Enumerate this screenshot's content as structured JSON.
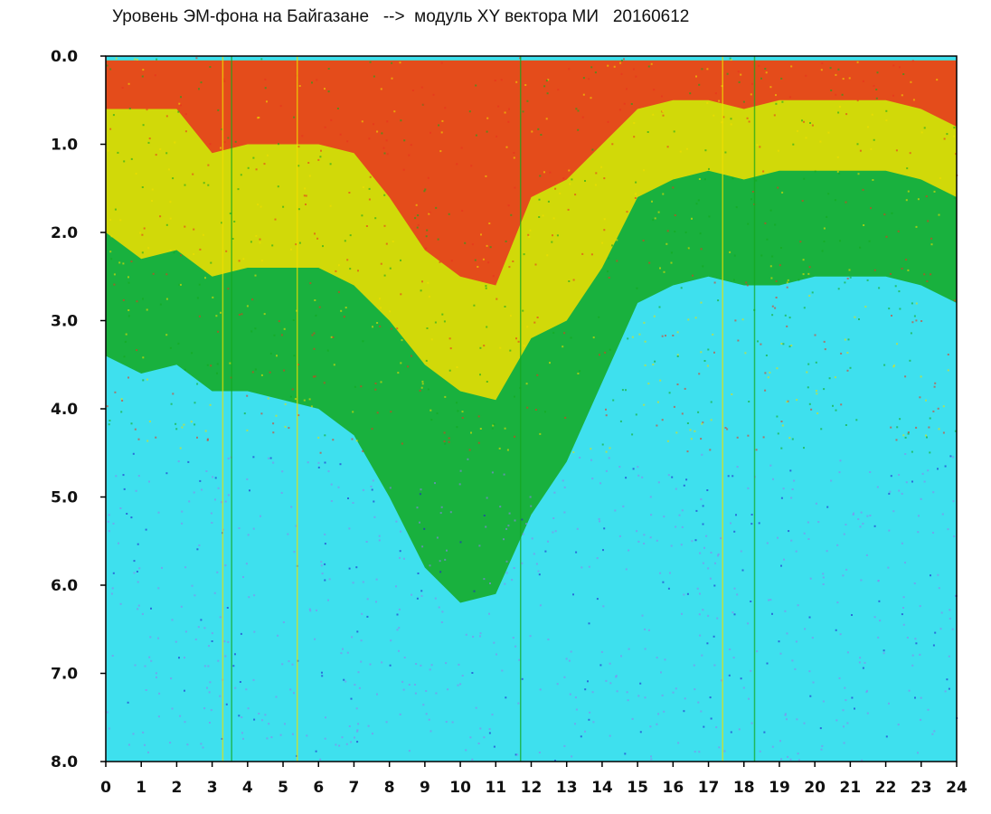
{
  "chart_data": {
    "type": "heatmap",
    "title": "Уровень ЭМ-фона на Байгазане   -->  модуль XY вектора МИ   20160612",
    "xlabel": "",
    "ylabel": "",
    "xlim": [
      0,
      24
    ],
    "ylim": [
      0.0,
      8.0
    ],
    "y_axis_inverted": true,
    "x_ticks": [
      "0",
      "1",
      "2",
      "3",
      "4",
      "5",
      "6",
      "7",
      "8",
      "9",
      "10",
      "11",
      "12",
      "13",
      "14",
      "15",
      "16",
      "17",
      "18",
      "19",
      "20",
      "21",
      "22",
      "23",
      "24"
    ],
    "y_ticks": [
      "0.0",
      "1.0",
      "2.0",
      "3.0",
      "4.0",
      "5.0",
      "6.0",
      "7.0",
      "8.0"
    ],
    "grid": false,
    "colors": {
      "red": "#e8321e",
      "yellow": "#f2e000",
      "green": "#13a81e",
      "cyan": "#3ee0ee",
      "violet": "#8f80f0",
      "blue": "#2020cc"
    },
    "hourly_profile": {
      "hours": [
        0,
        1,
        2,
        3,
        4,
        5,
        6,
        7,
        8,
        9,
        10,
        11,
        12,
        13,
        14,
        15,
        16,
        17,
        18,
        19,
        20,
        21,
        22,
        23,
        24
      ],
      "red_to_yellow_depth": [
        0.6,
        0.6,
        0.6,
        1.1,
        1.0,
        1.0,
        1.0,
        1.1,
        1.6,
        2.2,
        2.5,
        2.6,
        1.6,
        1.4,
        1.0,
        0.6,
        0.5,
        0.5,
        0.6,
        0.5,
        0.5,
        0.5,
        0.5,
        0.6,
        0.8
      ],
      "yellow_to_green_depth": [
        2.0,
        2.3,
        2.2,
        2.5,
        2.4,
        2.4,
        2.4,
        2.6,
        3.0,
        3.5,
        3.8,
        3.9,
        3.2,
        3.0,
        2.4,
        1.6,
        1.4,
        1.3,
        1.4,
        1.3,
        1.3,
        1.3,
        1.3,
        1.4,
        1.6
      ],
      "green_to_cyan_depth": [
        3.4,
        3.6,
        3.5,
        3.8,
        3.8,
        3.9,
        4.0,
        4.3,
        5.0,
        5.8,
        6.2,
        6.1,
        5.2,
        4.6,
        3.7,
        2.8,
        2.6,
        2.5,
        2.6,
        2.6,
        2.5,
        2.5,
        2.5,
        2.6,
        2.8
      ]
    },
    "notes": "dense point cloud; minute-by-minute samples"
  }
}
